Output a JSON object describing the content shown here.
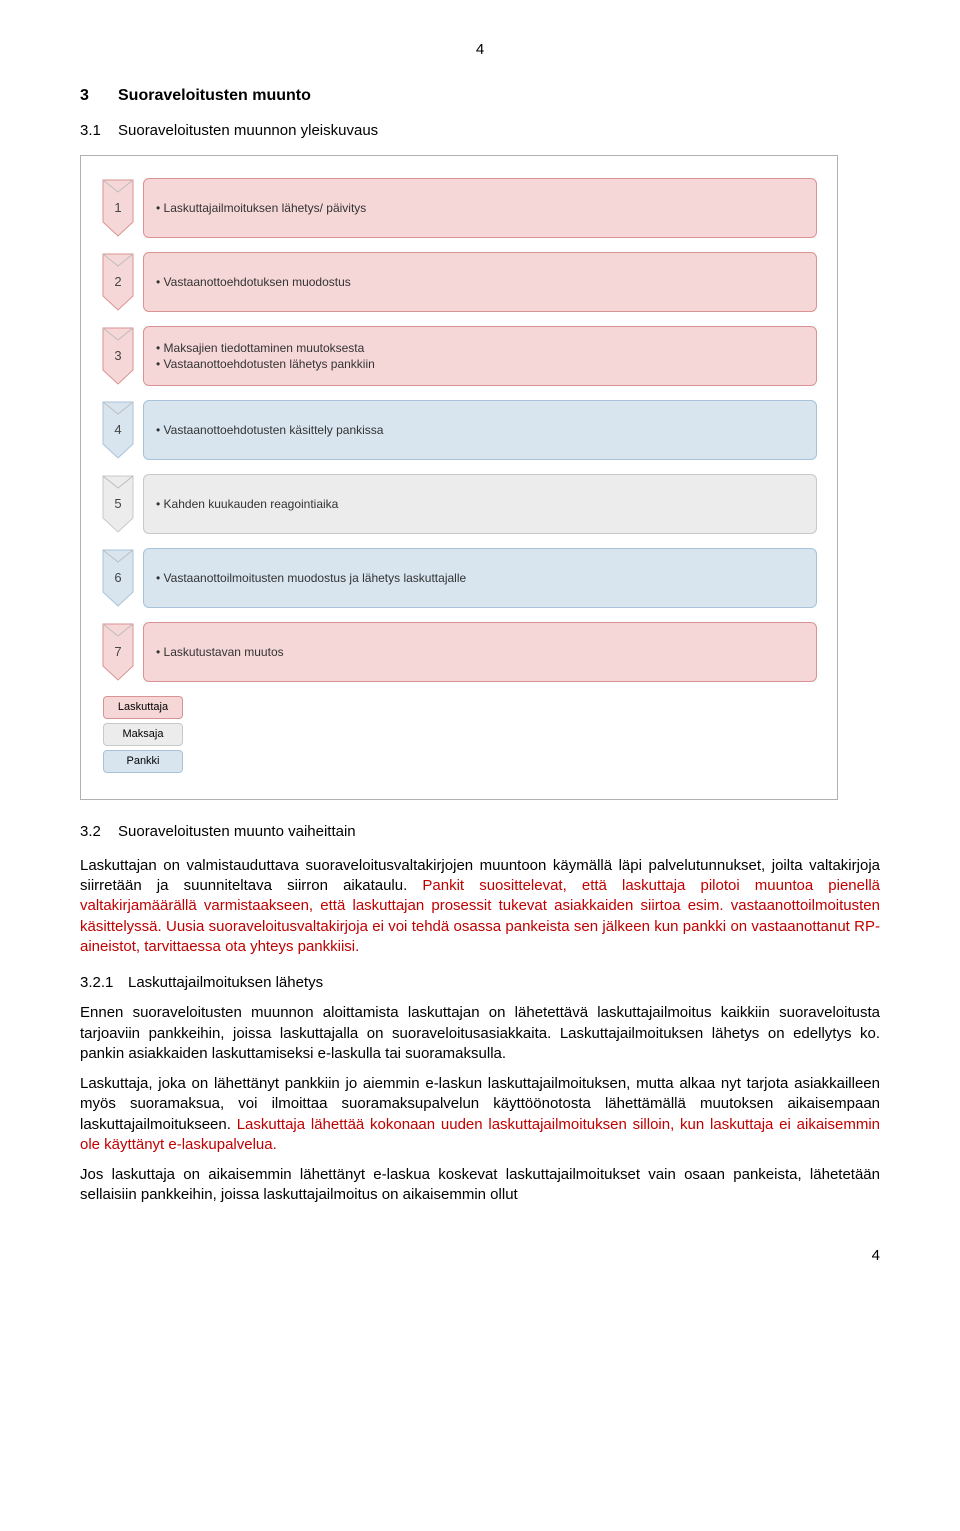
{
  "page_number_top": "4",
  "page_number_bottom": "4",
  "section_3": {
    "num": "3",
    "title": "Suoraveloitusten muunto"
  },
  "section_3_1": {
    "num": "3.1",
    "title": "Suoraveloitusten muunnon yleiskuvaus"
  },
  "section_3_2": {
    "num": "3.2",
    "title": "Suoraveloitusten muunto vaiheittain"
  },
  "section_3_2_1": {
    "num": "3.2.1",
    "title": "Laskuttajailmoituksen lähetys"
  },
  "diagram": {
    "colors": {
      "pink_fill": "#f6d7d7",
      "pink_border": "#d99393",
      "grey_fill": "#ececec",
      "grey_border": "#c9c9c9",
      "blue_fill": "#d8e5ef",
      "blue_border": "#a8c3d9",
      "chevron_stroke": "#bdbdbd"
    },
    "steps": [
      {
        "n": "1",
        "role": "pink",
        "lines": [
          "Laskuttajailmoituksen lähetys/ päivitys"
        ]
      },
      {
        "n": "2",
        "role": "pink",
        "lines": [
          "Vastaanottoehdotuksen muodostus"
        ]
      },
      {
        "n": "3",
        "role": "pink",
        "lines": [
          "Maksajien tiedottaminen muutoksesta",
          "Vastaanottoehdotusten lähetys pankkiin"
        ]
      },
      {
        "n": "4",
        "role": "blue",
        "lines": [
          "Vastaanottoehdotusten käsittely pankissa"
        ]
      },
      {
        "n": "5",
        "role": "grey",
        "lines": [
          "Kahden kuukauden reagointiaika"
        ]
      },
      {
        "n": "6",
        "role": "blue",
        "lines": [
          "Vastaanottoilmoitusten muodostus ja lähetys laskuttajalle"
        ]
      },
      {
        "n": "7",
        "role": "pink",
        "lines": [
          "Laskutustavan muutos"
        ]
      }
    ],
    "legend": [
      {
        "label": "Laskuttaja",
        "role": "pink"
      },
      {
        "label": "Maksaja",
        "role": "grey"
      },
      {
        "label": "Pankki",
        "role": "blue"
      }
    ]
  },
  "para_3_2_intro_black": "Laskuttajan on valmistauduttava suoraveloitusvaltakirjojen muuntoon käymällä läpi palvelutunnukset, joilta valtakirjoja siirretään ja suunniteltava siirron aikataulu. ",
  "para_3_2_intro_red": "Pankit suosittelevat, että laskuttaja pilotoi muuntoa pienellä valtakirjamäärällä varmistaakseen, että laskuttajan prosessit tukevat asiakkaiden siirtoa esim. vastaanottoilmoitusten käsittelyssä. Uusia suoraveloitusvaltakirjoja ei voi tehdä osassa pankeista sen jälkeen kun pankki on vastaanottanut RP-aineistot, tarvittaessa ota yhteys pankkiisi.",
  "para_3_2_1_a": "Ennen suoraveloitusten muunnon aloittamista laskuttajan on lähetettävä laskuttajailmoitus kaikkiin suoraveloitusta tarjoaviin pankkeihin, joissa laskuttajalla on suoraveloitusasiakkaita. Laskuttajailmoituksen lähetys on edellytys ko. pankin asiakkaiden laskuttamiseksi e-laskulla tai suoramaksulla.",
  "para_3_2_1_b_black1": "Laskuttaja, joka on lähettänyt pankkiin jo aiemmin e-laskun laskuttajailmoituksen, mutta alkaa nyt tarjota asiakkailleen myös suoramaksua, voi ilmoittaa suoramaksupalvelun käyttöönotosta lähettämällä muutoksen aikaisempaan laskuttajailmoitukseen. ",
  "para_3_2_1_b_red": "Laskuttaja lähettää kokonaan uuden laskuttajailmoituksen silloin, kun laskuttaja ei aikaisemmin ole käyttänyt e-laskupalvelua.",
  "para_3_2_1_c": "Jos laskuttaja on aikaisemmin lähettänyt e-laskua koskevat laskuttajailmoitukset vain osaan pankeista, lähetetään sellaisiin pankkeihin, joissa laskuttajailmoitus on aikaisemmin ollut"
}
